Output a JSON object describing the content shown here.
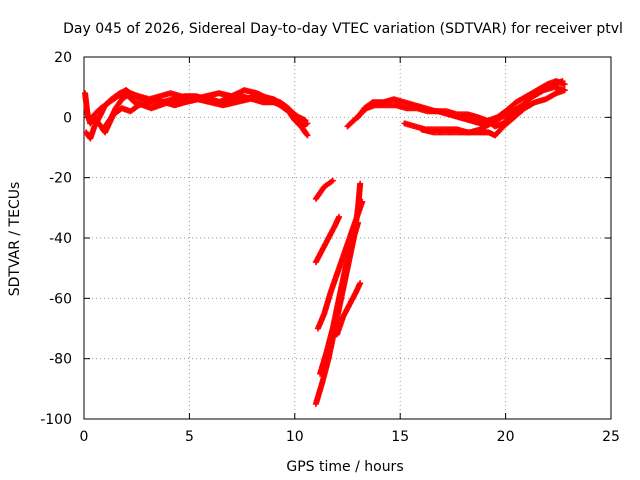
{
  "chart_data": {
    "type": "scatter",
    "title": "Day 045 of 2026, Sidereal Day-to-day VTEC variation (SDTVAR) for receiver ptvl",
    "xlabel": "GPS time / hours",
    "ylabel": "SDTVAR / TECUs",
    "xlim": [
      0,
      25
    ],
    "ylim": [
      -100,
      20
    ],
    "xticks": [
      "0",
      "5",
      "10",
      "15",
      "20",
      "25"
    ],
    "yticks": [
      "-100",
      "-80",
      "-60",
      "-40",
      "-20",
      "0",
      "20"
    ],
    "grid": true,
    "marker": "+",
    "color": "#ff0000",
    "series": [
      {
        "x": [
          0.05,
          0.1,
          0.15,
          0.2,
          0.3,
          0.5,
          0.8,
          1.2,
          1.6,
          1.9,
          2.1,
          2.4,
          2.8,
          3.2,
          3.6,
          4.0,
          4.5,
          5.0,
          5.5,
          6.0,
          6.5,
          7.0,
          7.5,
          8.0,
          8.5,
          9.0,
          9.4,
          9.8,
          10.2,
          10.5
        ],
        "y": [
          8,
          5,
          2,
          0,
          -2,
          1,
          3,
          5,
          7,
          8,
          7,
          5,
          4,
          3,
          4,
          5,
          6,
          6,
          6,
          6,
          5,
          6,
          7,
          6,
          5,
          5,
          4,
          2,
          0,
          -1
        ]
      },
      {
        "x": [
          0.1,
          0.3,
          0.5,
          0.8,
          1.0,
          1.3,
          1.7,
          2.0,
          2.4,
          2.8,
          3.2,
          3.7,
          4.2,
          4.8,
          5.3,
          5.9,
          6.4,
          7.0,
          7.6,
          8.2,
          8.8,
          9.3,
          9.7,
          10.0,
          10.3,
          10.6
        ],
        "y": [
          -5,
          -7,
          -3,
          1,
          4,
          6,
          8,
          9,
          7,
          6,
          5,
          5,
          6,
          7,
          7,
          6,
          5,
          7,
          9,
          8,
          6,
          4,
          2,
          -1,
          -3,
          -2
        ]
      },
      {
        "x": [
          0.3,
          0.5,
          0.8,
          1.0,
          1.2,
          1.4,
          1.8,
          2.2,
          2.6,
          3.0,
          3.4,
          3.8,
          4.3,
          4.8,
          5.4,
          6.0,
          6.6,
          7.2,
          7.8,
          8.4,
          9.0,
          9.5,
          9.9,
          10.2,
          10.5
        ],
        "y": [
          -2,
          0,
          -3,
          -5,
          -2,
          1,
          3,
          2,
          4,
          5,
          6,
          5,
          4,
          5,
          6,
          5,
          4,
          5,
          6,
          7,
          6,
          4,
          1,
          -2,
          -5
        ]
      },
      {
        "x": [
          0.9,
          1.1,
          1.3,
          1.5,
          1.8,
          2.2,
          2.6,
          3.1,
          3.6,
          4.1,
          4.6,
          5.2,
          5.8,
          6.4,
          7.0,
          7.6,
          8.2,
          8.8,
          9.3,
          9.7,
          10.1,
          10.4,
          10.6
        ],
        "y": [
          -4,
          -2,
          0,
          3,
          6,
          8,
          7,
          6,
          7,
          8,
          7,
          6,
          7,
          8,
          7,
          6,
          7,
          6,
          5,
          3,
          0,
          -4,
          -6
        ]
      },
      {
        "x": [
          11.0,
          11.3,
          11.6,
          11.9,
          12.1
        ],
        "y": [
          -48,
          -44,
          -40,
          -36,
          -33
        ]
      },
      {
        "x": [
          11.0,
          11.2,
          11.4,
          11.6,
          11.8
        ],
        "y": [
          -27,
          -25,
          -23,
          -22,
          -21
        ]
      },
      {
        "x": [
          11.0,
          11.3,
          11.6,
          11.9,
          12.2,
          12.5,
          12.8,
          13.0,
          13.1
        ],
        "y": [
          -95,
          -88,
          -80,
          -70,
          -60,
          -50,
          -40,
          -30,
          -22
        ]
      },
      {
        "x": [
          11.2,
          11.5,
          11.8,
          12.1,
          12.4,
          12.7,
          13.0
        ],
        "y": [
          -85,
          -78,
          -70,
          -60,
          -50,
          -42,
          -35
        ]
      },
      {
        "x": [
          11.1,
          11.4,
          11.7,
          12.0,
          12.3,
          12.6,
          12.9,
          13.2
        ],
        "y": [
          -70,
          -65,
          -58,
          -52,
          -46,
          -40,
          -34,
          -28
        ]
      },
      {
        "x": [
          12.0,
          12.3,
          12.6,
          12.9,
          13.1
        ],
        "y": [
          -72,
          -66,
          -62,
          -58,
          -55
        ]
      },
      {
        "x": [
          12.5,
          12.8,
          13.1,
          13.4,
          13.8,
          14.3,
          14.8,
          15.3,
          15.8,
          16.3,
          16.8,
          17.3,
          17.8,
          18.3,
          18.8,
          19.2,
          19.6,
          20.0,
          20.5,
          21.0,
          21.5,
          22.0,
          22.4,
          22.8
        ],
        "y": [
          -3,
          -1,
          1,
          3,
          4,
          4,
          4,
          3,
          3,
          2,
          2,
          1,
          0,
          -1,
          -2,
          -1,
          0,
          2,
          5,
          7,
          9,
          11,
          12,
          11
        ]
      },
      {
        "x": [
          13.0,
          13.3,
          13.7,
          14.2,
          14.7,
          15.2,
          15.7,
          16.2,
          16.7,
          17.2,
          17.7,
          18.2,
          18.7,
          19.1,
          19.5,
          19.9,
          20.3,
          20.8,
          21.3,
          21.8,
          22.3,
          22.8
        ],
        "y": [
          0,
          3,
          5,
          5,
          6,
          5,
          4,
          3,
          2,
          2,
          1,
          1,
          0,
          -1,
          -3,
          -2,
          1,
          4,
          7,
          9,
          10,
          9
        ]
      },
      {
        "x": [
          15.2,
          15.7,
          16.2,
          16.7,
          17.2,
          17.7,
          18.2,
          18.7,
          19.2,
          19.5,
          19.9,
          20.4,
          20.9,
          21.4,
          21.9,
          22.4,
          22.8
        ],
        "y": [
          -2,
          -3,
          -4,
          -4,
          -4,
          -4,
          -5,
          -5,
          -5,
          -6,
          -3,
          0,
          3,
          5,
          6,
          8,
          9
        ]
      },
      {
        "x": [
          16.0,
          16.6,
          17.2,
          17.8,
          18.3,
          18.8,
          19.3,
          19.8,
          20.3,
          20.8,
          21.3,
          21.8,
          22.3,
          22.7
        ],
        "y": [
          -4,
          -5,
          -5,
          -5,
          -5,
          -4,
          -2,
          0,
          2,
          4,
          7,
          9,
          11,
          12
        ]
      }
    ]
  }
}
